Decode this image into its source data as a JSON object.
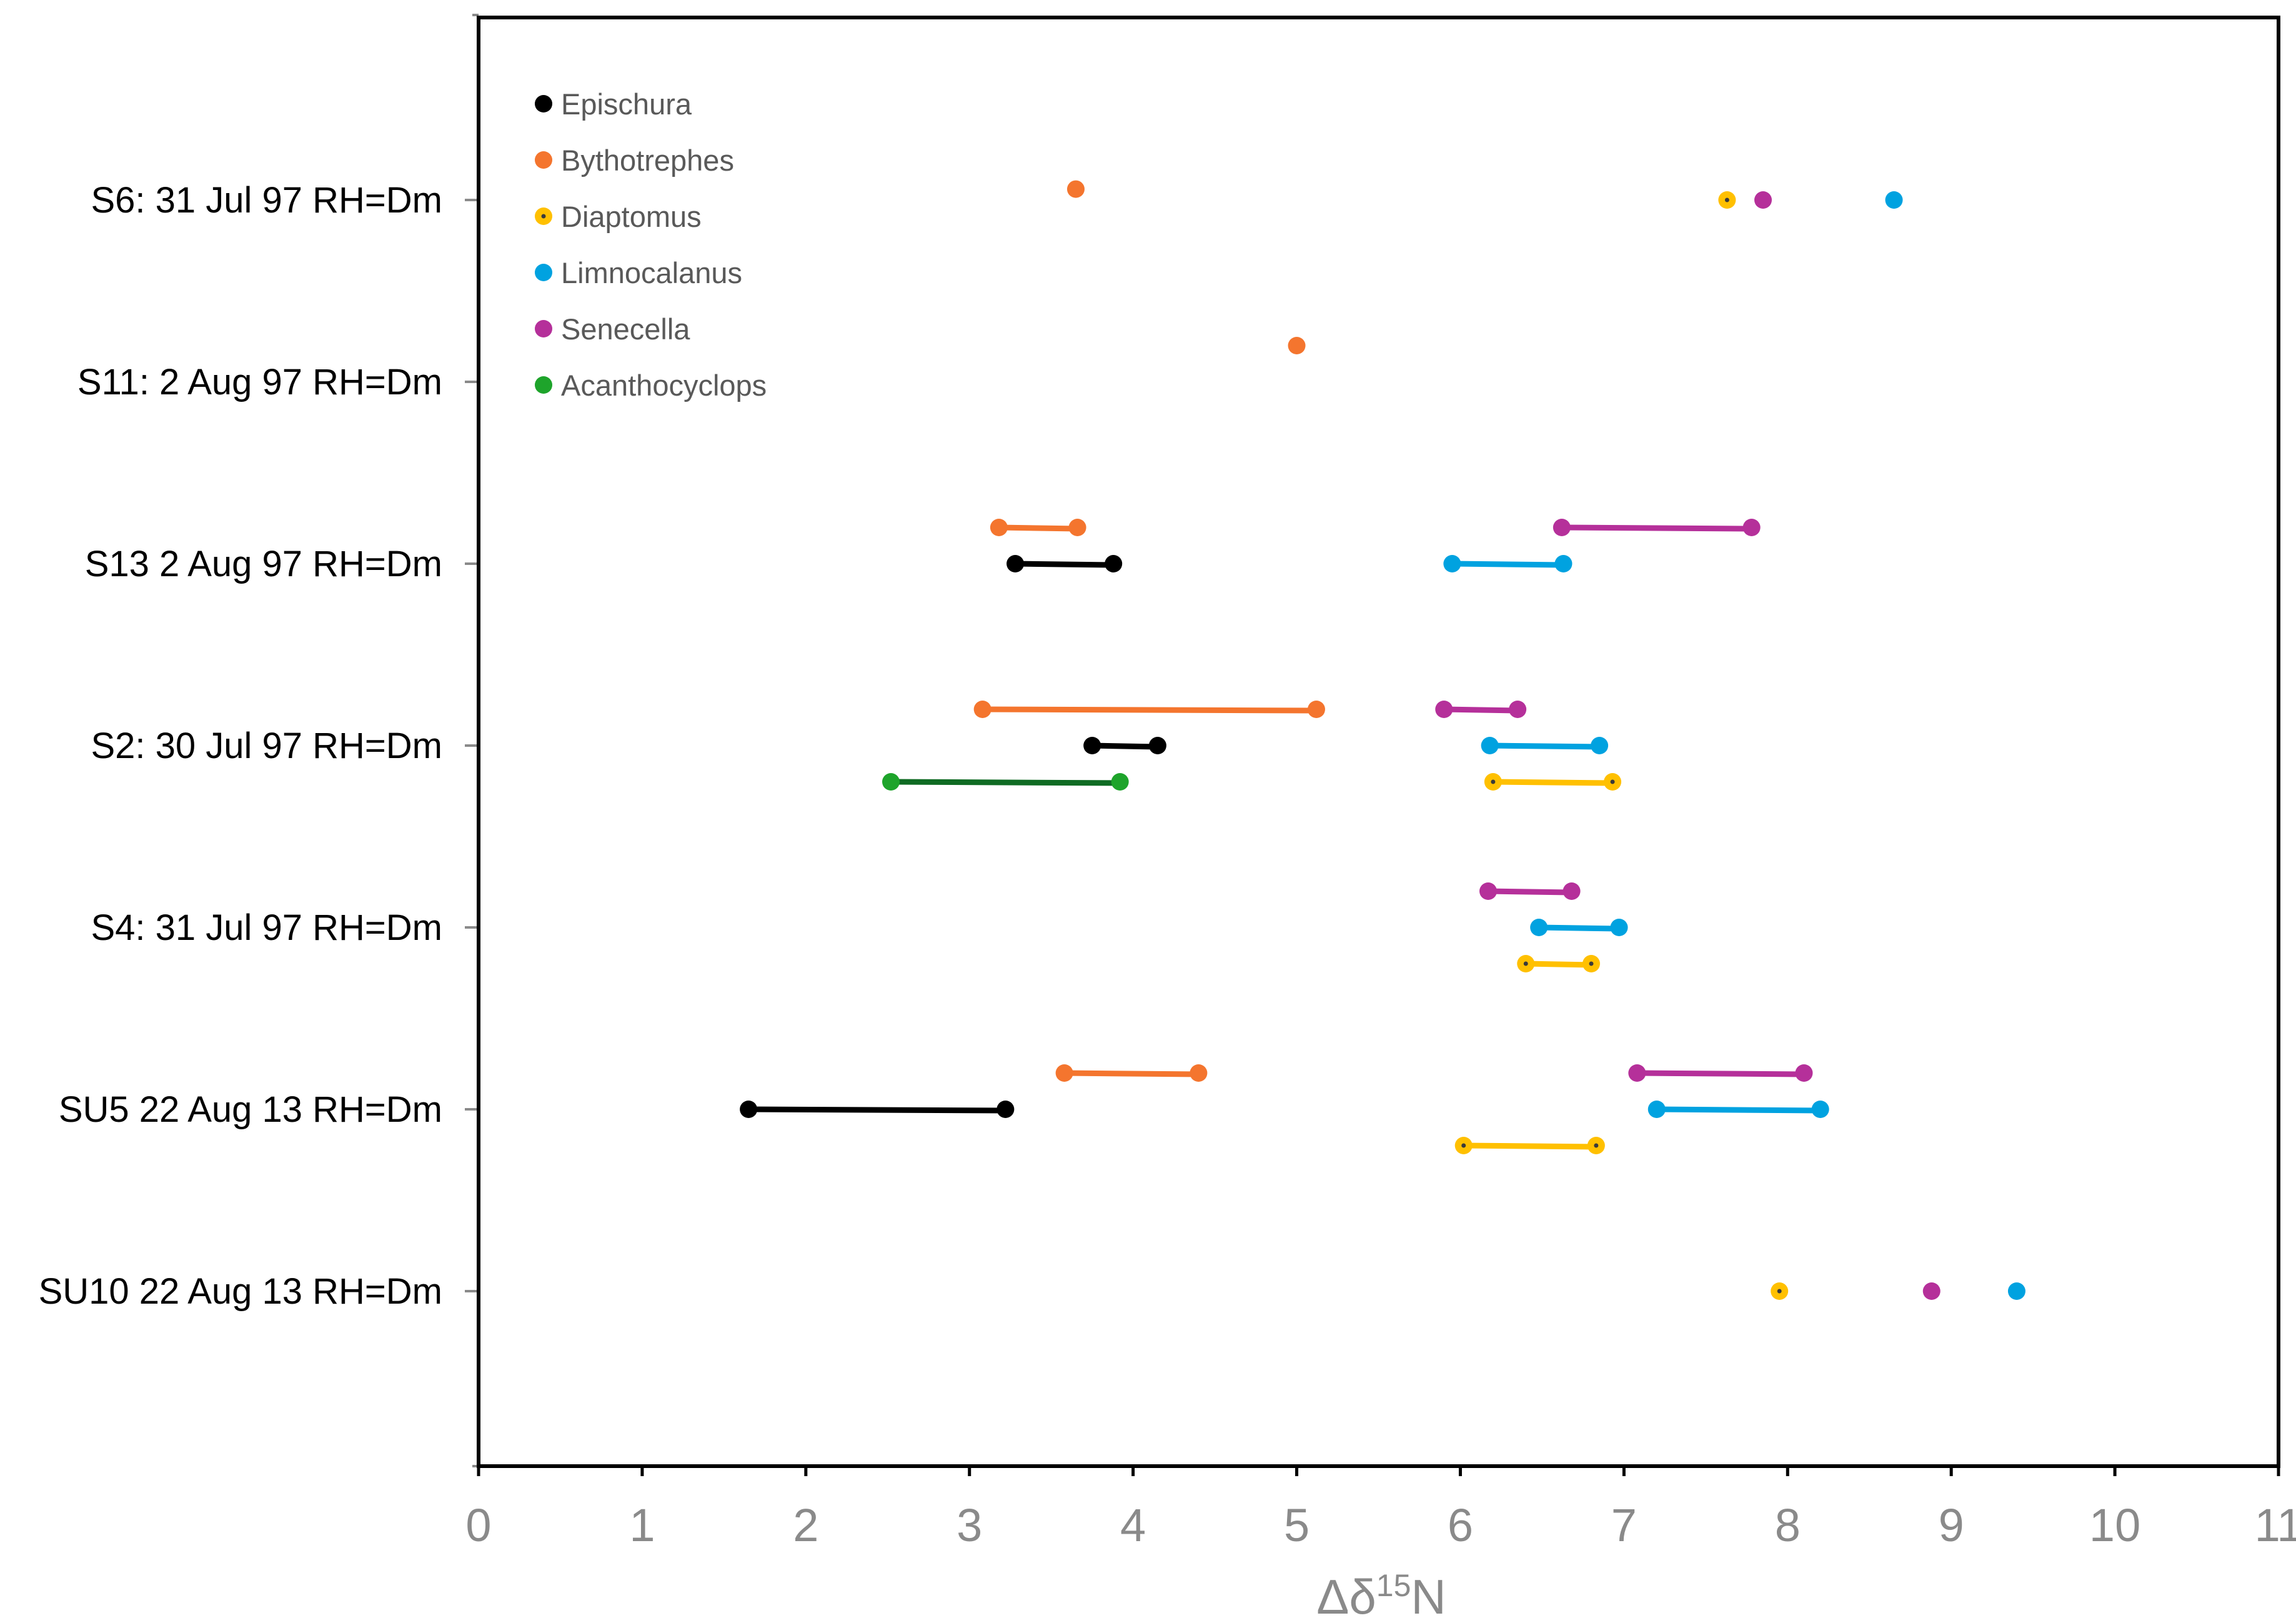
{
  "chart_data": {
    "type": "dumbbell",
    "xlabel": "Δδ",
    "xlabel_sup": "15",
    "xlabel_suffix": "N",
    "xlim": [
      0,
      11
    ],
    "x_ticks": [
      0,
      1,
      2,
      3,
      4,
      5,
      6,
      7,
      8,
      9,
      10,
      11
    ],
    "grid": false,
    "legend_position": "top-left",
    "categories": [
      "S6: 31 Jul 97 RH=Dm",
      "S11: 2 Aug 97 RH=Dm",
      "S13 2 Aug 97 RH=Dm",
      "S2: 30 Jul 97 RH=Dm",
      "S4: 31 Jul 97 RH=Dm",
      "SU5 22 Aug 13 RH=Dm",
      "SU10 22 Aug 13 RH=Dm"
    ],
    "series": [
      {
        "name": "Epischura",
        "color": "#000000",
        "line_color": "#000000",
        "marker_dot": false,
        "ranges": [
          {
            "category": "S13 2 Aug 97 RH=Dm",
            "offset": 0,
            "values": [
              3.28,
              3.88
            ]
          },
          {
            "category": "S2: 30 Jul 97 RH=Dm",
            "offset": 0,
            "values": [
              3.75,
              4.15
            ]
          },
          {
            "category": "SU5 22 Aug 13 RH=Dm",
            "offset": 0,
            "values": [
              1.65,
              3.22
            ]
          }
        ]
      },
      {
        "name": "Bythotrephes",
        "color": "#F4752E",
        "line_color": "#F4752E",
        "marker_dot": false,
        "ranges": [
          {
            "category": "S6: 31 Jul 97 RH=Dm",
            "offset": -0.06,
            "values": [
              3.65
            ]
          },
          {
            "category": "S11: 2 Aug 97 RH=Dm",
            "offset": -0.2,
            "values": [
              5.0
            ]
          },
          {
            "category": "S13 2 Aug 97 RH=Dm",
            "offset": -0.2,
            "values": [
              3.18,
              3.66
            ]
          },
          {
            "category": "S2: 30 Jul 97 RH=Dm",
            "offset": -0.2,
            "values": [
              3.08,
              5.12
            ]
          },
          {
            "category": "SU5 22 Aug 13 RH=Dm",
            "offset": -0.2,
            "values": [
              3.58,
              4.4
            ]
          }
        ]
      },
      {
        "name": "Diaptomus",
        "color": "#FFC000",
        "line_color": "#FFC000",
        "marker_dot": true,
        "ranges": [
          {
            "category": "S6: 31 Jul 97 RH=Dm",
            "offset": 0,
            "values": [
              7.63
            ]
          },
          {
            "category": "S2: 30 Jul 97 RH=Dm",
            "offset": 0.2,
            "values": [
              6.2,
              6.93
            ]
          },
          {
            "category": "S4: 31 Jul 97 RH=Dm",
            "offset": 0.2,
            "values": [
              6.4,
              6.8
            ]
          },
          {
            "category": "SU5 22 Aug 13 RH=Dm",
            "offset": 0.2,
            "values": [
              6.02,
              6.83
            ]
          },
          {
            "category": "SU10 22 Aug 13 RH=Dm",
            "offset": 0,
            "values": [
              7.95
            ]
          }
        ]
      },
      {
        "name": "Limnocalanus",
        "color": "#00A2E0",
        "line_color": "#00A2E0",
        "marker_dot": false,
        "ranges": [
          {
            "category": "S6: 31 Jul 97 RH=Dm",
            "offset": 0,
            "values": [
              8.65
            ]
          },
          {
            "category": "S13 2 Aug 97 RH=Dm",
            "offset": 0,
            "values": [
              5.95,
              6.63
            ]
          },
          {
            "category": "S2: 30 Jul 97 RH=Dm",
            "offset": 0,
            "values": [
              6.18,
              6.85
            ]
          },
          {
            "category": "S4: 31 Jul 97 RH=Dm",
            "offset": 0,
            "values": [
              6.48,
              6.97
            ]
          },
          {
            "category": "SU5 22 Aug 13 RH=Dm",
            "offset": 0,
            "values": [
              7.2,
              8.2
            ]
          },
          {
            "category": "SU10 22 Aug 13 RH=Dm",
            "offset": 0,
            "values": [
              9.4
            ]
          }
        ]
      },
      {
        "name": "Senecella",
        "color": "#B5309A",
        "line_color": "#B5309A",
        "marker_dot": false,
        "ranges": [
          {
            "category": "S6: 31 Jul 97 RH=Dm",
            "offset": 0,
            "values": [
              7.85
            ]
          },
          {
            "category": "S13 2 Aug 97 RH=Dm",
            "offset": -0.2,
            "values": [
              6.62,
              7.78
            ]
          },
          {
            "category": "S2: 30 Jul 97 RH=Dm",
            "offset": -0.2,
            "values": [
              5.9,
              6.35
            ]
          },
          {
            "category": "S4: 31 Jul 97 RH=Dm",
            "offset": -0.2,
            "values": [
              6.17,
              6.68
            ]
          },
          {
            "category": "SU5 22 Aug 13 RH=Dm",
            "offset": -0.2,
            "values": [
              7.08,
              8.1
            ]
          },
          {
            "category": "SU10 22 Aug 13 RH=Dm",
            "offset": 0,
            "values": [
              8.88
            ]
          }
        ]
      },
      {
        "name": "Acanthocyclops",
        "color": "#1EA42B",
        "line_color": "#0F6B23",
        "marker_dot": false,
        "ranges": [
          {
            "category": "S2: 30 Jul 97 RH=Dm",
            "offset": 0.2,
            "values": [
              2.52,
              3.92
            ]
          }
        ]
      }
    ]
  }
}
